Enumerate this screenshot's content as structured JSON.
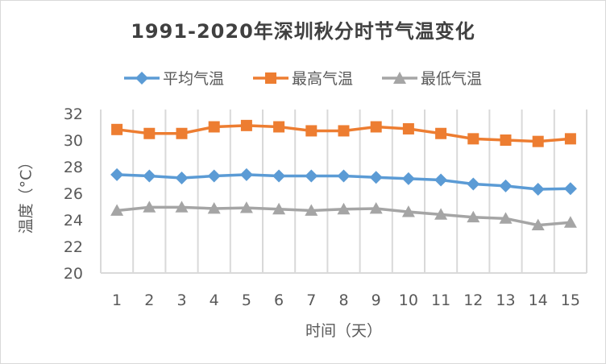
{
  "chart_data": {
    "type": "line",
    "title": "1991-2020年深圳秋分时节气温变化",
    "xlabel": "时间（天）",
    "ylabel": "温度（°C）",
    "categories": [
      "1",
      "2",
      "3",
      "4",
      "5",
      "6",
      "7",
      "8",
      "9",
      "10",
      "11",
      "12",
      "13",
      "14",
      "15"
    ],
    "ylim": [
      20,
      32
    ],
    "yticks": [
      "20",
      "22",
      "24",
      "26",
      "28",
      "30",
      "32"
    ],
    "grid": "vertical",
    "legend": "top",
    "series": [
      {
        "name": "平均气温",
        "color": "#5b9bd5",
        "marker": "diamond",
        "values": [
          27.4,
          27.3,
          27.15,
          27.3,
          27.4,
          27.3,
          27.3,
          27.3,
          27.2,
          27.1,
          27.0,
          26.7,
          26.55,
          26.3,
          26.35
        ]
      },
      {
        "name": "最高气温",
        "color": "#ed7d31",
        "marker": "square",
        "values": [
          30.8,
          30.5,
          30.5,
          31.0,
          31.1,
          31.0,
          30.7,
          30.7,
          31.0,
          30.85,
          30.5,
          30.1,
          30.0,
          29.9,
          30.1
        ]
      },
      {
        "name": "最低气温",
        "color": "#a5a5a5",
        "marker": "triangle",
        "values": [
          24.7,
          24.95,
          24.95,
          24.85,
          24.9,
          24.8,
          24.7,
          24.8,
          24.85,
          24.6,
          24.4,
          24.2,
          24.1,
          23.6,
          23.8
        ]
      }
    ]
  }
}
